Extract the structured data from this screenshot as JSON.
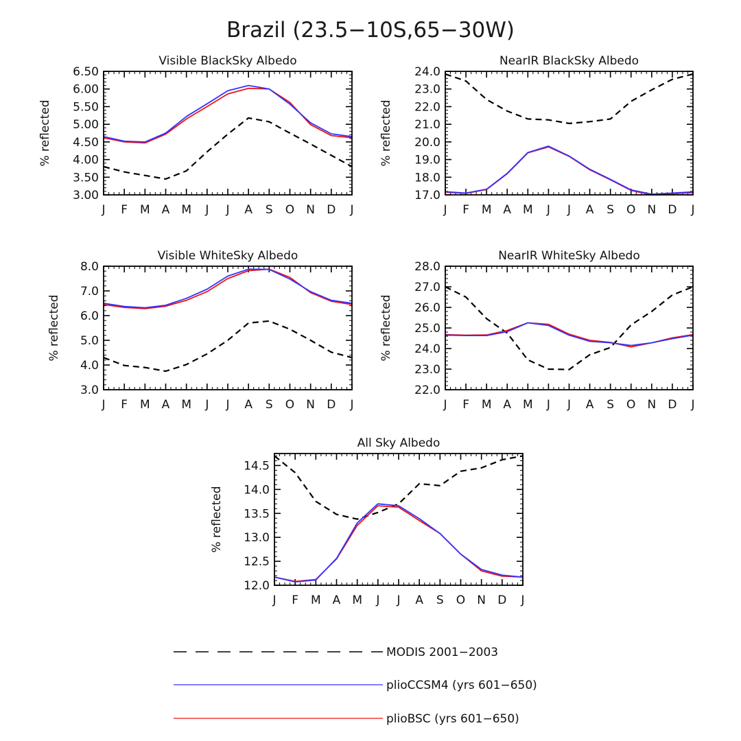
{
  "figure_title": "Brazil (23.5−10S,65−30W)",
  "months": [
    "J",
    "F",
    "M",
    "A",
    "M",
    "J",
    "J",
    "A",
    "S",
    "O",
    "N",
    "D",
    "J"
  ],
  "legend": [
    {
      "label": "MODIS 2001−2003",
      "color": "#000000",
      "dash": true
    },
    {
      "label": "plioCCSM4 (yrs 601−650)",
      "color": "#3333ff",
      "dash": false
    },
    {
      "label": "plioBSC (yrs 601−650)",
      "color": "#ee1111",
      "dash": false
    }
  ],
  "chart_data": [
    {
      "type": "line",
      "title": "Visible BlackSky Albedo",
      "ylabel": "% reflected",
      "ylim": [
        3.0,
        6.5
      ],
      "yticks": [
        "3.00",
        "3.50",
        "4.00",
        "4.50",
        "5.00",
        "5.50",
        "6.00",
        "6.50"
      ],
      "series": [
        {
          "name": "MODIS 2001−2003",
          "values": [
            3.8,
            3.65,
            3.55,
            3.45,
            3.68,
            4.22,
            4.72,
            5.18,
            5.07,
            4.75,
            4.44,
            4.12,
            3.8
          ]
        },
        {
          "name": "plioBSC (yrs 601−650)",
          "values": [
            4.62,
            4.5,
            4.47,
            4.72,
            5.15,
            5.5,
            5.86,
            6.02,
            6.0,
            5.62,
            4.99,
            4.68,
            4.62
          ]
        },
        {
          "name": "plioCCSM4 (yrs 601−650)",
          "values": [
            4.65,
            4.52,
            4.5,
            4.75,
            5.22,
            5.58,
            5.95,
            6.1,
            6.0,
            5.57,
            5.04,
            4.73,
            4.65
          ]
        }
      ]
    },
    {
      "type": "line",
      "title": "NearIR BlackSky Albedo",
      "ylabel": "% reflected",
      "ylim": [
        17.0,
        24.0
      ],
      "yticks": [
        "17.0",
        "18.0",
        "19.0",
        "20.0",
        "21.0",
        "22.0",
        "23.0",
        "24.0"
      ],
      "series": [
        {
          "name": "MODIS 2001−2003",
          "values": [
            23.85,
            23.45,
            22.4,
            21.75,
            21.3,
            21.25,
            21.05,
            21.15,
            21.3,
            22.3,
            22.95,
            23.55,
            23.85
          ]
        },
        {
          "name": "plioBSC (yrs 601−650)",
          "values": [
            17.15,
            17.08,
            17.3,
            18.2,
            19.38,
            19.72,
            19.18,
            18.42,
            17.85,
            17.25,
            17.0,
            17.07,
            17.12
          ]
        },
        {
          "name": "plioCCSM4 (yrs 601−650)",
          "values": [
            17.18,
            17.1,
            17.32,
            18.22,
            19.4,
            19.76,
            19.2,
            18.45,
            17.88,
            17.28,
            17.04,
            17.1,
            17.17
          ]
        }
      ]
    },
    {
      "type": "line",
      "title": "Visible WhiteSky Albedo",
      "ylabel": "% reflected",
      "ylim": [
        3.0,
        8.0
      ],
      "yticks": [
        "3.0",
        "4.0",
        "5.0",
        "6.0",
        "7.0",
        "8.0"
      ],
      "series": [
        {
          "name": "MODIS 2001−2003",
          "values": [
            4.3,
            3.98,
            3.9,
            3.75,
            4.02,
            4.45,
            5.0,
            5.7,
            5.78,
            5.45,
            5.0,
            4.52,
            4.3
          ]
        },
        {
          "name": "plioBSC (yrs 601−650)",
          "values": [
            6.45,
            6.33,
            6.28,
            6.38,
            6.62,
            6.97,
            7.5,
            7.82,
            7.88,
            7.55,
            6.93,
            6.58,
            6.45
          ]
        },
        {
          "name": "plioCCSM4 (yrs 601−650)",
          "values": [
            6.5,
            6.37,
            6.32,
            6.42,
            6.7,
            7.07,
            7.6,
            7.88,
            7.87,
            7.48,
            6.97,
            6.62,
            6.5
          ]
        }
      ]
    },
    {
      "type": "line",
      "title": "NearIR WhiteSky Albedo",
      "ylabel": "% reflected",
      "ylim": [
        22.0,
        28.0
      ],
      "yticks": [
        "22.0",
        "23.0",
        "24.0",
        "25.0",
        "26.0",
        "27.0",
        "28.0"
      ],
      "series": [
        {
          "name": "MODIS 2001−2003",
          "values": [
            27.0,
            26.5,
            25.45,
            24.75,
            23.45,
            23.0,
            22.98,
            23.7,
            24.05,
            25.15,
            25.8,
            26.6,
            27.0
          ]
        },
        {
          "name": "plioBSC (yrs 601−650)",
          "values": [
            24.68,
            24.65,
            24.66,
            24.88,
            25.25,
            25.18,
            24.7,
            24.4,
            24.3,
            24.08,
            24.28,
            24.52,
            24.68
          ]
        },
        {
          "name": "plioCCSM4 (yrs 601−650)",
          "values": [
            24.65,
            24.63,
            24.63,
            24.82,
            25.25,
            25.12,
            24.65,
            24.35,
            24.28,
            24.15,
            24.28,
            24.48,
            24.65
          ]
        }
      ]
    },
    {
      "type": "line",
      "title": "All Sky Albedo",
      "ylabel": "% reflected",
      "ylim": [
        12.0,
        14.75
      ],
      "yticks": [
        "12.0",
        "12.5",
        "13.0",
        "13.5",
        "14.0",
        "14.5"
      ],
      "series": [
        {
          "name": "MODIS 2001−2003",
          "values": [
            14.7,
            14.35,
            13.75,
            13.48,
            13.38,
            13.52,
            13.7,
            14.12,
            14.08,
            14.38,
            14.45,
            14.62,
            14.7
          ]
        },
        {
          "name": "plioBSC (yrs 601−650)",
          "values": [
            12.17,
            12.08,
            12.12,
            12.55,
            13.25,
            13.66,
            13.63,
            13.35,
            13.08,
            12.65,
            12.3,
            12.19,
            12.17
          ]
        },
        {
          "name": "plioCCSM4 (yrs 601−650)",
          "values": [
            12.17,
            12.07,
            12.11,
            12.56,
            13.3,
            13.7,
            13.66,
            13.39,
            13.08,
            12.65,
            12.33,
            12.21,
            12.17
          ]
        }
      ]
    }
  ]
}
